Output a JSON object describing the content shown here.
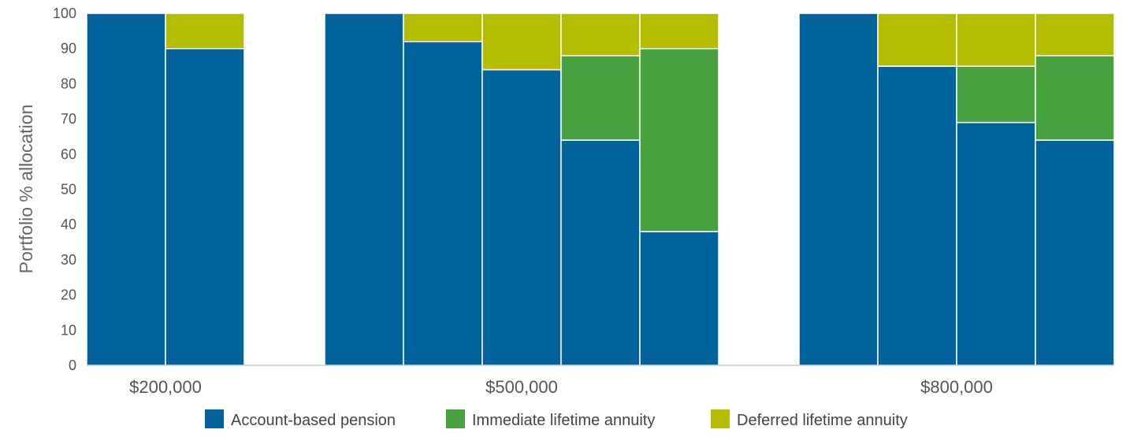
{
  "chart_data": {
    "type": "bar",
    "stacked": true,
    "ylabel": "Portfolio % allocation",
    "xlabel": "",
    "ylim": [
      0,
      100
    ],
    "yticks": [
      0,
      10,
      20,
      30,
      40,
      50,
      60,
      70,
      80,
      90,
      100
    ],
    "grid": false,
    "legend_position": "bottom",
    "groups": [
      {
        "label": "$200,000",
        "bars": [
          {
            "values": [
              100,
              0,
              0
            ]
          },
          {
            "values": [
              90,
              0,
              10
            ]
          }
        ]
      },
      {
        "label": "$500,000",
        "bars": [
          {
            "values": [
              100,
              0,
              0
            ]
          },
          {
            "values": [
              92,
              0,
              8
            ]
          },
          {
            "values": [
              84,
              0,
              16
            ]
          },
          {
            "values": [
              64,
              24,
              12
            ]
          },
          {
            "values": [
              38,
              52,
              10
            ]
          }
        ]
      },
      {
        "label": "$800,000",
        "bars": [
          {
            "values": [
              100,
              0,
              0
            ]
          },
          {
            "values": [
              85,
              0,
              15
            ]
          },
          {
            "values": [
              69,
              16,
              15
            ]
          },
          {
            "values": [
              64,
              24,
              12
            ]
          }
        ]
      }
    ],
    "series": [
      {
        "name": "Account-based pension",
        "color": "#00639b"
      },
      {
        "name": "Immediate lifetime annuity",
        "color": "#47a23f"
      },
      {
        "name": "Deferred lifetime annuity",
        "color": "#b5bd00"
      }
    ]
  }
}
